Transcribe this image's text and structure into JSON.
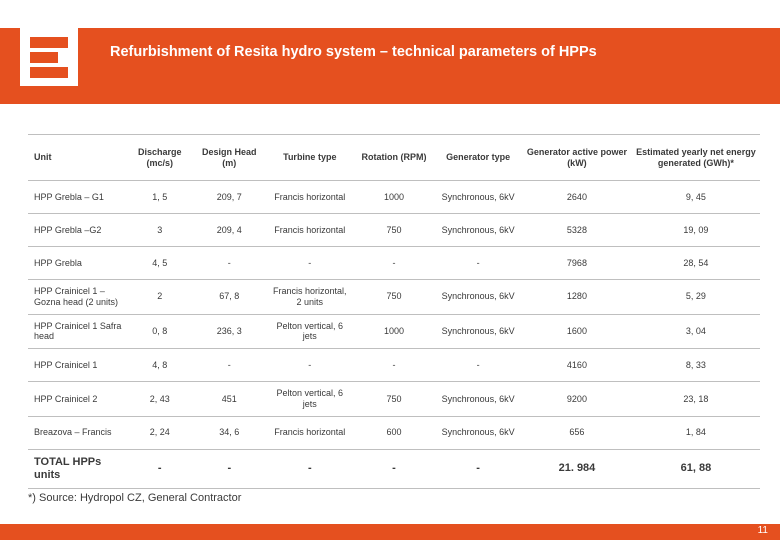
{
  "title": "Refurbishment of Resita hydro system – technical parameters of HPPs",
  "page_number": "11",
  "footnote": "*) Source: Hydropol CZ, General Contractor",
  "colors": {
    "brand": "#e5501f",
    "text": "#3a3a3a",
    "grid": "#bfbfbf",
    "bg": "#ffffff"
  },
  "table": {
    "columns": [
      "Unit",
      "Discharge (mc/s)",
      "Design Head (m)",
      "Turbine type",
      "Rotation (RPM)",
      "Generator type",
      "Generator active power (kW)",
      "Estimated yearly net energy generated (GWh)*"
    ],
    "rows": [
      [
        "HPP Grebla – G1",
        "1, 5",
        "209, 7",
        "Francis horizontal",
        "1000",
        "Synchronous, 6kV",
        "2640",
        "9, 45"
      ],
      [
        "HPP Grebla –G2",
        "3",
        "209, 4",
        "Francis horizontal",
        "750",
        "Synchronous, 6kV",
        "5328",
        "19, 09"
      ],
      [
        "HPP Grebla",
        "4, 5",
        "-",
        "-",
        "-",
        "-",
        "7968",
        "28, 54"
      ],
      [
        "HPP Crainicel 1 – Gozna head (2 units)",
        "2",
        "67, 8",
        "Francis horizontal, 2 units",
        "750",
        "Synchronous, 6kV",
        "1280",
        "5, 29"
      ],
      [
        "HPP Crainicel 1 Safra head",
        "0, 8",
        "236, 3",
        "Pelton vertical, 6 jets",
        "1000",
        "Synchronous, 6kV",
        "1600",
        "3, 04"
      ],
      [
        "HPP Crainicel 1",
        "4, 8",
        "-",
        "-",
        "-",
        "-",
        "4160",
        "8, 33"
      ],
      [
        "HPP Crainicel 2",
        "2, 43",
        "451",
        "Pelton vertical, 6 jets",
        "750",
        "Synchronous, 6kV",
        "9200",
        "23, 18"
      ],
      [
        "Breazova – Francis",
        "2, 24",
        "34, 6",
        "Francis horizontal",
        "600",
        "Synchronous, 6kV",
        "656",
        "1, 84"
      ]
    ],
    "total_row": [
      "TOTAL HPPs units",
      "-",
      "-",
      "-",
      "-",
      "-",
      "21. 984",
      "61, 88"
    ]
  }
}
